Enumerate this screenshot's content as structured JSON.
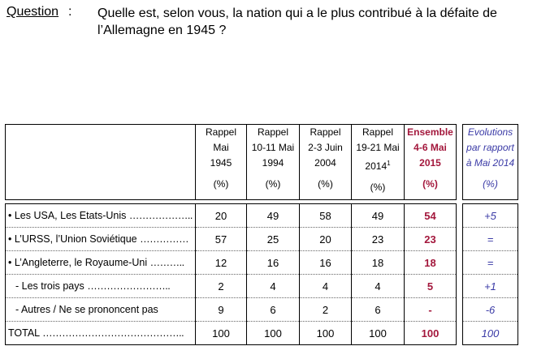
{
  "question": {
    "label": "Question",
    "colon": ":",
    "text_line1": "Quelle est, selon vous, la nation qui a le plus contribué à la défaite de",
    "text_line2": "l’Allemagne en 1945 ?"
  },
  "table": {
    "columns": [
      {
        "l1": "Rappel",
        "l2": "Mai",
        "l3": "1945",
        "l4": "(%)"
      },
      {
        "l1": "Rappel",
        "l2": "10-11 Mai",
        "l3": "1994",
        "l4": "(%)"
      },
      {
        "l1": "Rappel",
        "l2": "2-3 Juin",
        "l3": "2004",
        "l4": "(%)"
      },
      {
        "l1": "Rappel",
        "l2": "19-21 Mai",
        "l3": "2014",
        "l3_sup": "1",
        "l4": "(%)"
      },
      {
        "l1": "Ensemble",
        "l2": "4-6 Mai",
        "l3": "2015",
        "l4": "(%)"
      }
    ],
    "evolution_header": {
      "l1": "Evolutions",
      "l2": "par rapport",
      "l3": "à Mai 2014",
      "l4": "(%)"
    },
    "rows": [
      {
        "label": "• Les USA, Les Etats-Unis",
        "dots": "………………..",
        "values": [
          "20",
          "49",
          "58",
          "49",
          "54"
        ],
        "evolution": "+5"
      },
      {
        "label": "• L’URSS, l’Union Soviétique",
        "dots": "……………",
        "values": [
          "57",
          "25",
          "20",
          "23",
          "23"
        ],
        "evolution": "="
      },
      {
        "label": "• L’Angleterre, le Royaume-Uni",
        "dots": "………..",
        "values": [
          "12",
          "16",
          "16",
          "18",
          "18"
        ],
        "evolution": "="
      },
      {
        "label": "- Les trois pays",
        "dots": "……………………..",
        "values": [
          "2",
          "4",
          "4",
          "4",
          "5"
        ],
        "evolution": "+1"
      },
      {
        "label": "- Autres / Ne se prononcent pas",
        "dots": "",
        "values": [
          "9",
          "6",
          "2",
          "6",
          "-"
        ],
        "evolution": "-6"
      },
      {
        "label": "TOTAL",
        "dots": "……………………………………..",
        "values": [
          "100",
          "100",
          "100",
          "100",
          "100"
        ],
        "evolution": "100"
      }
    ]
  },
  "colors": {
    "highlight": "#a3173c",
    "evolution": "#3a3aa6"
  }
}
